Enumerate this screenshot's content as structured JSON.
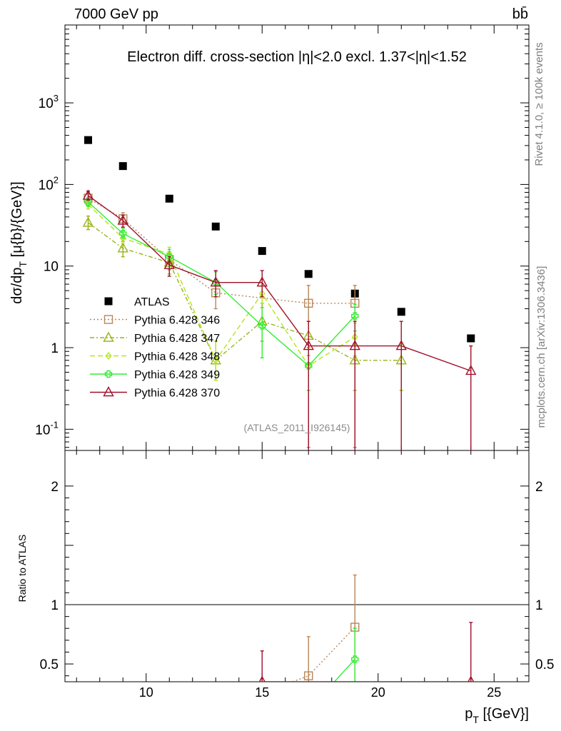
{
  "header": {
    "energy_label": "7000 GeV pp",
    "process_label": "bb̄",
    "rivet_label": "Rivet 4.1.0, ≥ 100k events",
    "mcplots_label": "mcplots.cern.ch [arXiv:1306.3436]"
  },
  "chart_data": {
    "type": "scatter",
    "title": "Electron diff. cross-section |η|<2.0 excl. 1.37<|η|<1.52",
    "ylabel": "dσ/dp_T [μ{b}/{GeV}]",
    "xlabel": "p_T [{GeV}]",
    "ratio_ylabel": "Ratio to ATLAS",
    "reference_label": "(ATLAS_2011_I926145)",
    "xlim": [
      6.5,
      26.5
    ],
    "ylim": [
      0.055,
      9000
    ],
    "yscale": "log",
    "ratio_ylim": [
      0.35,
      2.3
    ],
    "x_ticks": [
      "10",
      "15",
      "20",
      "25"
    ],
    "y_ticks": [
      "10^{-1}",
      "1",
      "10",
      "10^{2}",
      "10^{3}"
    ],
    "ratio_ticks": [
      "0.5",
      "1",
      "2"
    ],
    "legend_position": "left-middle",
    "series": [
      {
        "name": "ATLAS",
        "color": "#000000",
        "marker": "square-filled",
        "dash": "none",
        "x": [
          7.5,
          9,
          11,
          13,
          15,
          17,
          19,
          21,
          24
        ],
        "y": [
          350,
          168,
          67,
          30.5,
          15.3,
          8.0,
          4.6,
          2.75,
          1.3
        ],
        "err_lo": [
          0,
          0,
          0,
          0,
          0,
          0,
          0,
          0,
          0
        ],
        "err_hi": [
          0,
          0,
          0,
          0,
          0,
          0,
          0,
          0,
          0
        ],
        "ratio": [],
        "ratio_lo": [],
        "ratio_hi": []
      },
      {
        "name": "Pythia 6.428 346",
        "color": "#b8875a",
        "marker": "square-open",
        "dash": "2,3",
        "x": [
          7.5,
          9,
          11,
          13,
          17,
          19
        ],
        "y": [
          68,
          38,
          12,
          4.7,
          3.5,
          3.5
        ],
        "err_lo": [
          60,
          30,
          9,
          3,
          0.06,
          0.06
        ],
        "err_hi": [
          78,
          45,
          15,
          6.5,
          5.8,
          5.8
        ],
        "ratio_x": [
          17,
          19
        ],
        "ratio": [
          0.4,
          0.81
        ],
        "ratio_lo": [
          0.35,
          0.35
        ],
        "ratio_hi": [
          0.73,
          1.25
        ]
      },
      {
        "name": "Pythia 6.428 347",
        "color": "#99b31a",
        "marker": "triangle-open",
        "dash": "6,3,2,3",
        "x": [
          7.5,
          9,
          11,
          13,
          15,
          17,
          19,
          21
        ],
        "y": [
          34,
          16.5,
          11,
          0.7,
          2.1,
          1.4,
          0.7,
          0.7
        ],
        "err_lo": [
          28,
          13,
          8,
          0.4,
          1.2,
          0.8,
          0.3,
          0.3
        ],
        "err_hi": [
          41,
          20,
          14,
          1.2,
          3.5,
          2.1,
          1.1,
          1.1
        ],
        "ratio_x": [],
        "ratio": [],
        "ratio_lo": [],
        "ratio_hi": []
      },
      {
        "name": "Pythia 6.428 348",
        "color": "#b3e61a",
        "marker": "diamond-open",
        "dash": "7,4",
        "x": [
          7.5,
          9,
          11,
          13,
          15,
          17,
          19
        ],
        "y": [
          57,
          22,
          14,
          0.7,
          4.6,
          0.6,
          1.35
        ],
        "err_lo": [
          50,
          19,
          11,
          0.4,
          3.5,
          0.3,
          0.8
        ],
        "err_hi": [
          65,
          26,
          17,
          1.2,
          6.0,
          1.0,
          2.0
        ],
        "ratio_x": [],
        "ratio": [],
        "ratio_lo": [],
        "ratio_hi": []
      },
      {
        "name": "Pythia 6.428 349",
        "color": "#33ee33",
        "marker": "cross-open",
        "dash": "none",
        "x": [
          7.5,
          9,
          11,
          13,
          15,
          17,
          19
        ],
        "y": [
          61,
          25,
          13,
          6.3,
          1.85,
          0.6,
          2.45
        ],
        "err_lo": [
          54,
          22,
          10,
          4.5,
          0.75,
          0.3,
          1.6
        ],
        "err_hi": [
          69,
          29,
          16,
          8.5,
          3.1,
          1.0,
          3.4
        ],
        "ratio_x": [
          19
        ],
        "ratio": [
          0.54
        ],
        "ratio_lo": [
          0.35
        ],
        "ratio_hi": [
          0.8
        ]
      },
      {
        "name": "Pythia 6.428 370",
        "color": "#a0102a",
        "marker": "triangle-open",
        "dash": "none",
        "x": [
          7.5,
          9,
          11,
          13,
          15,
          17,
          19,
          21,
          24
        ],
        "y": [
          73,
          36,
          10.3,
          6.3,
          6.3,
          1.05,
          1.05,
          1.05,
          0.52
        ],
        "err_lo": [
          64,
          30,
          7.5,
          4.2,
          4.2,
          0.02,
          0.02,
          0.02,
          0.02
        ],
        "err_hi": [
          83,
          42,
          13,
          8.8,
          8.8,
          2.1,
          2.1,
          2.1,
          1.05
        ],
        "ratio_x": [
          15,
          24
        ],
        "ratio": [
          0.35,
          0.35
        ],
        "ratio_lo": [
          0.35,
          0.35
        ],
        "ratio_hi": [
          0.61,
          0.85
        ]
      }
    ]
  }
}
